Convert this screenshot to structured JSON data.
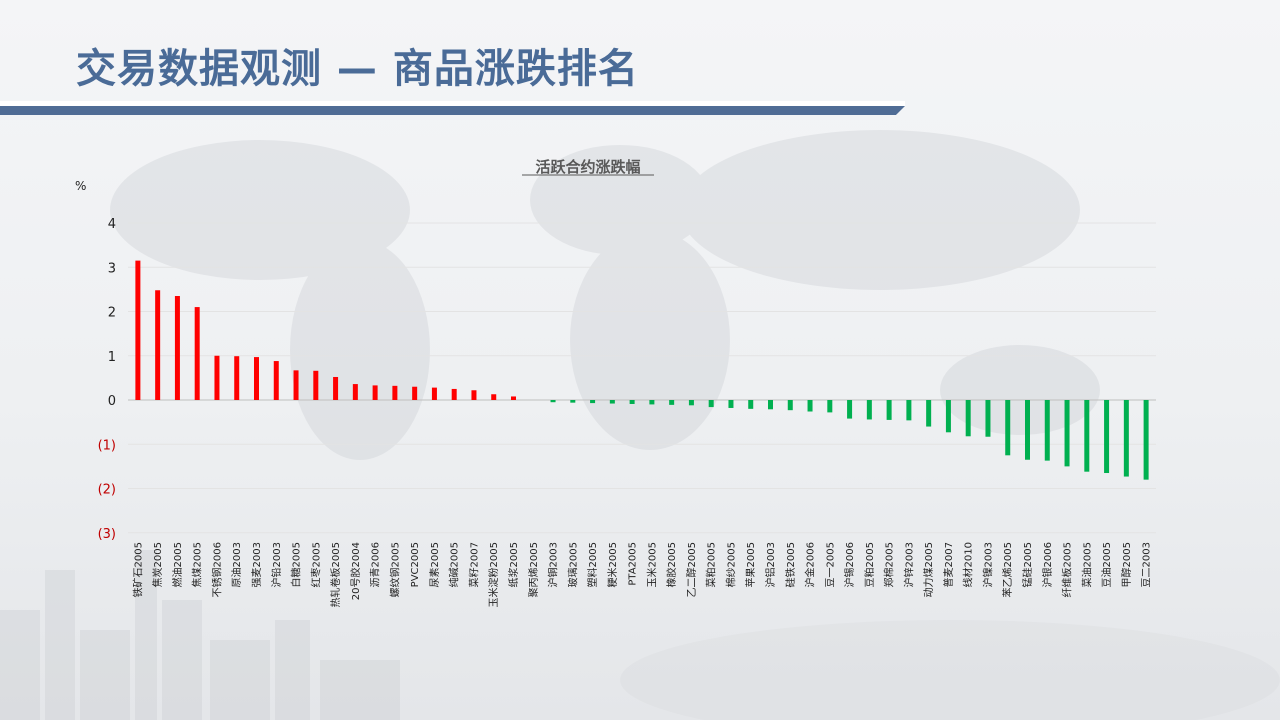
{
  "page": {
    "title": "交易数据观测 — 商品涨跌排名"
  },
  "colors": {
    "up": "#ff0000",
    "down": "#00b050",
    "title": "#4a6b97",
    "band": "#4f6c95",
    "negative_tick": "#c00000"
  },
  "chart_data": {
    "type": "bar",
    "title": "活跃合约涨跌幅",
    "ylabel": "%",
    "ylim": [
      -3,
      4
    ],
    "yticks": [
      4,
      3,
      2,
      1,
      0,
      -1,
      -2,
      -3
    ],
    "ytick_labels": [
      "4",
      "3",
      "2",
      "1",
      "0",
      "(1)",
      "(2)",
      "(3)"
    ],
    "grid": true,
    "legend": "none",
    "categories": [
      "铁矿石2005",
      "焦炭2005",
      "燃油2005",
      "焦煤2005",
      "不锈钢2006",
      "原油2003",
      "强麦2003",
      "沪铅2003",
      "白糖2005",
      "红枣2005",
      "热轧卷板2005",
      "20号胶2004",
      "沥青2006",
      "螺纹钢2005",
      "PVC2005",
      "尿素2005",
      "纯碱2005",
      "菜籽2007",
      "玉米淀粉2005",
      "纸浆2005",
      "聚丙烯2005",
      "沪铜2003",
      "玻璃2005",
      "塑料2005",
      "粳米2005",
      "PTA2005",
      "玉米2005",
      "橡胶2005",
      "乙二醇2005",
      "菜粕2005",
      "棉纱2005",
      "苹果2005",
      "沪铝2003",
      "硅铁2005",
      "沪金2006",
      "豆一2005",
      "沪锡2006",
      "豆粕2005",
      "郑棉2005",
      "沪锌2003",
      "动力煤2005",
      "普麦2007",
      "线材2010",
      "沪镍2003",
      "苯乙烯2005",
      "锰硅2005",
      "沪银2006",
      "纤维板2005",
      "菜油2005",
      "豆油2005",
      "甲醇2005",
      "豆二2003"
    ],
    "values": [
      3.15,
      2.48,
      2.35,
      2.1,
      1.0,
      0.99,
      0.97,
      0.88,
      0.67,
      0.66,
      0.52,
      0.36,
      0.33,
      0.32,
      0.3,
      0.28,
      0.25,
      0.22,
      0.13,
      0.08,
      0.0,
      -0.05,
      -0.06,
      -0.07,
      -0.08,
      -0.09,
      -0.1,
      -0.11,
      -0.12,
      -0.16,
      -0.18,
      -0.2,
      -0.21,
      -0.23,
      -0.26,
      -0.28,
      -0.42,
      -0.44,
      -0.45,
      -0.46,
      -0.6,
      -0.73,
      -0.82,
      -0.83,
      -1.25,
      -1.35,
      -1.37,
      -1.5,
      -1.62,
      -1.65,
      -1.73,
      -1.8
    ]
  }
}
